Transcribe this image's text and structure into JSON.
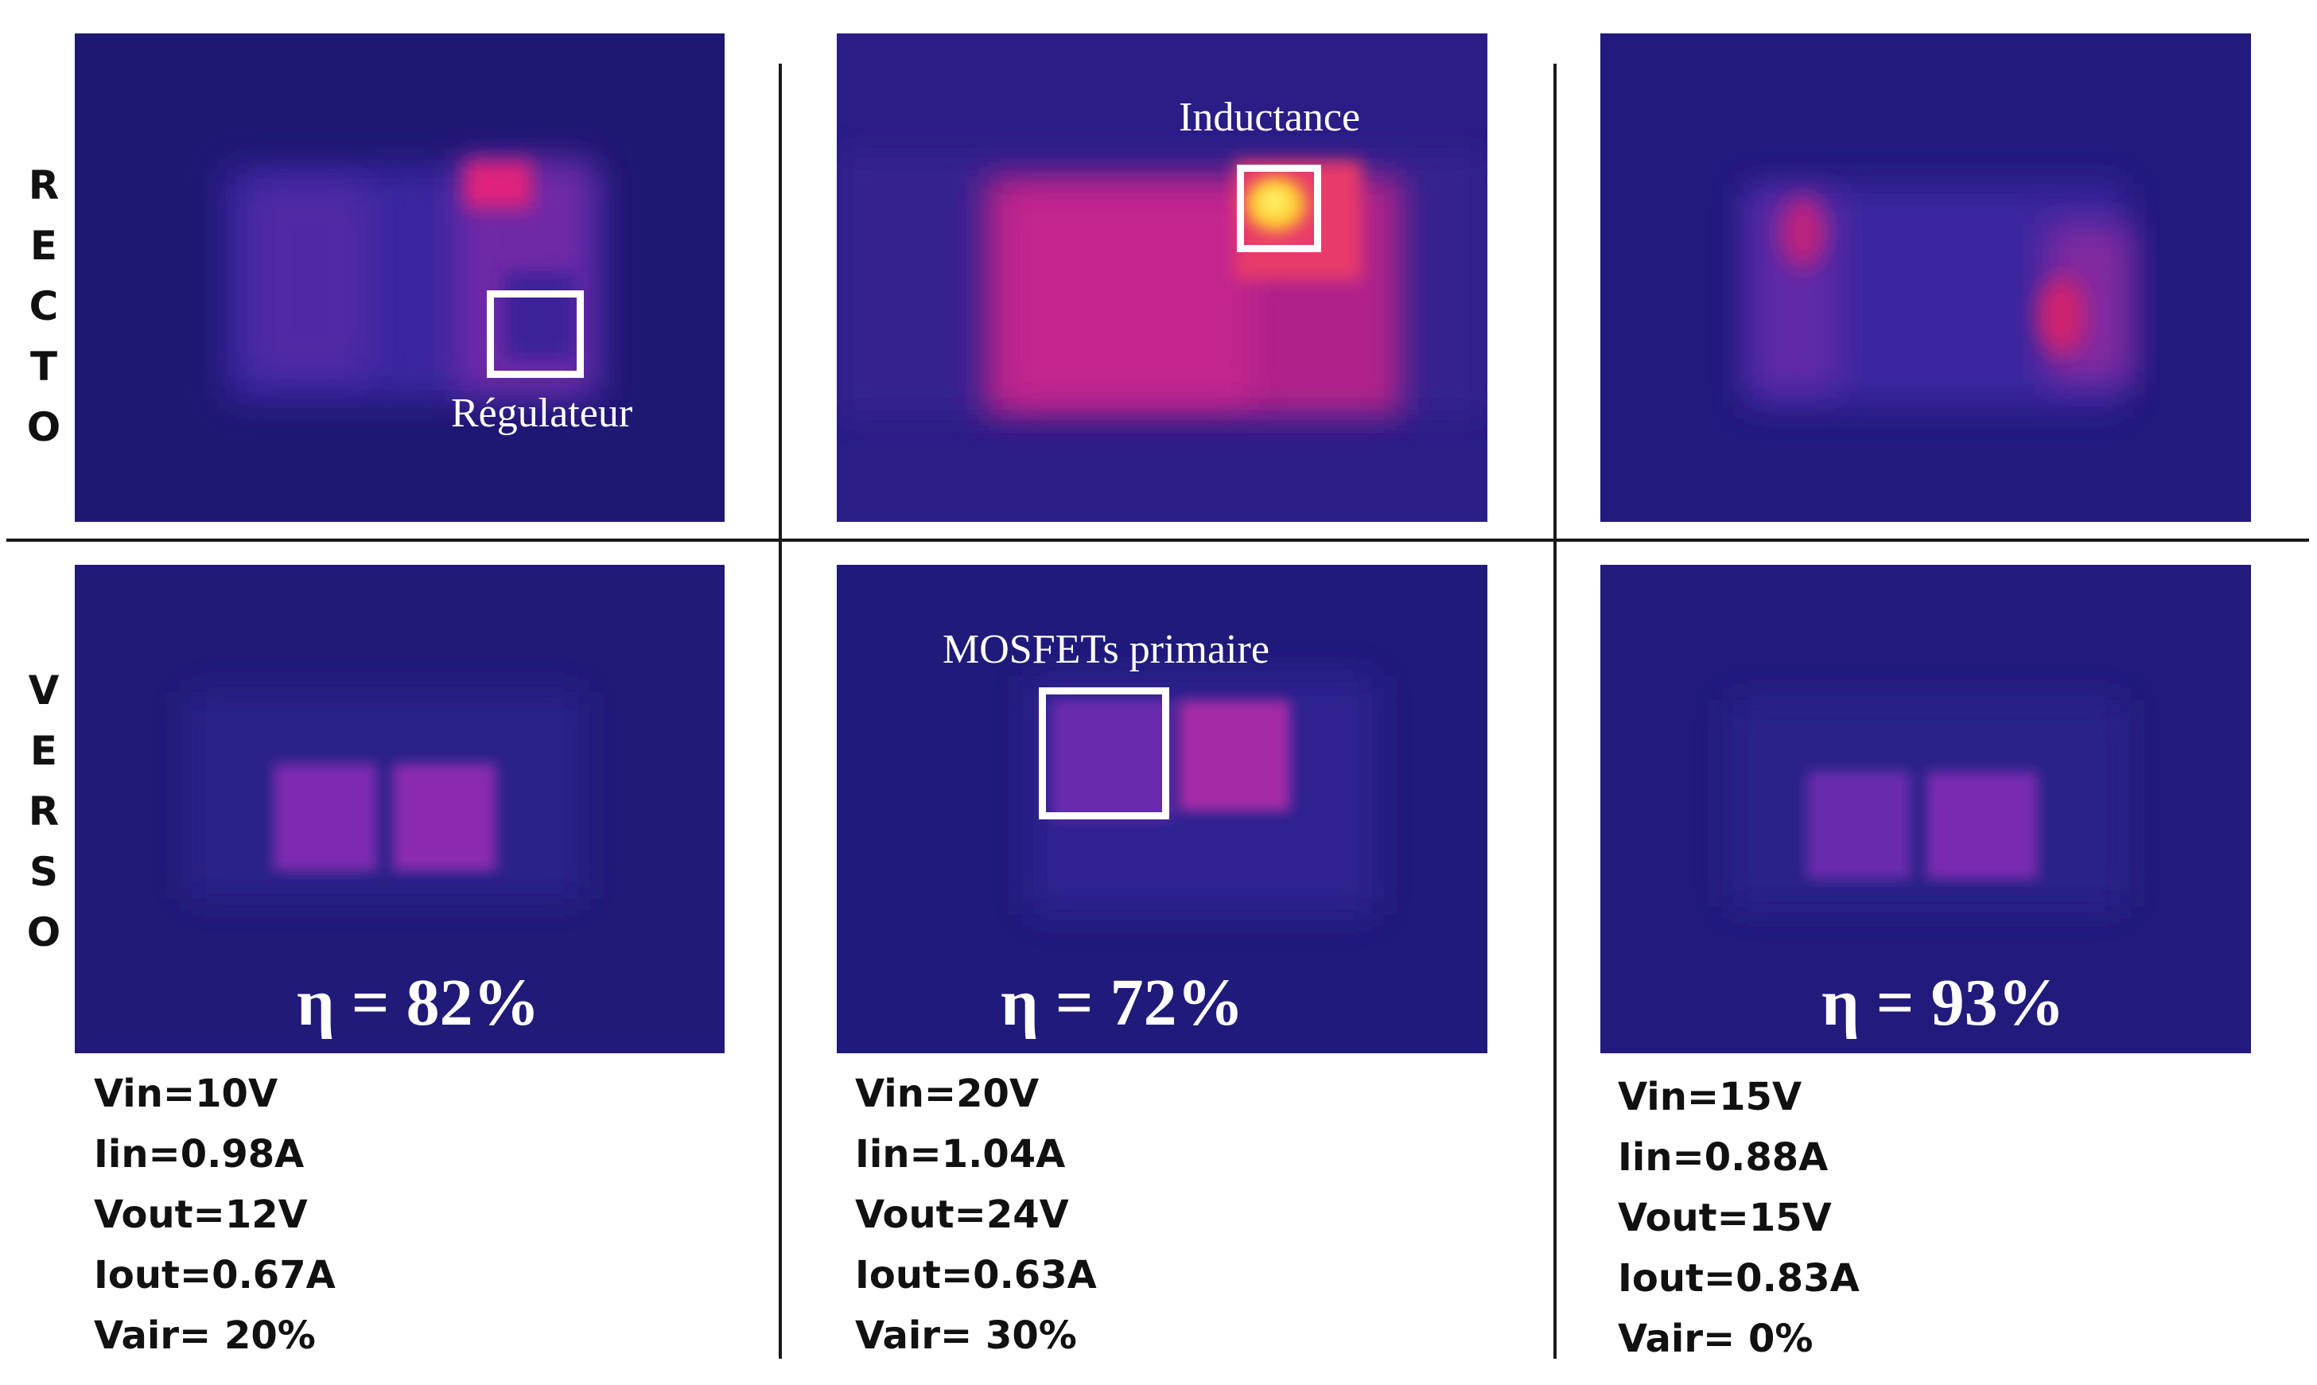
{
  "row_labels": {
    "recto": [
      "R",
      "E",
      "C",
      "T",
      "O"
    ],
    "verso": [
      "V",
      "E",
      "R",
      "S",
      "O"
    ]
  },
  "annotations": {
    "regulateur": "Régulateur",
    "inductance": "Inductance",
    "mosfets": "MOSFETs primaire"
  },
  "columns": [
    {
      "efficiency": "η = 82%",
      "params": [
        "Vin=10V",
        "Iin=0.98A",
        "Vout=12V",
        "Iout=0.67A",
        "Vair= 20%"
      ]
    },
    {
      "efficiency": "η = 72%",
      "params": [
        "Vin=20V",
        "Iin=1.04A",
        "Vout=24V",
        "Iout=0.63A",
        "Vair= 30%"
      ]
    },
    {
      "efficiency": "η = 93%",
      "params": [
        "Vin=15V",
        "Iin=0.88A",
        "Vout=15V",
        "Iout=0.83A",
        "Vair= 0%"
      ]
    }
  ],
  "colors": {
    "thermal_cold": "#22197a",
    "thermal_warm": "#b0238a",
    "thermal_hot": "#ffd21a",
    "annotation": "#ffffff"
  }
}
